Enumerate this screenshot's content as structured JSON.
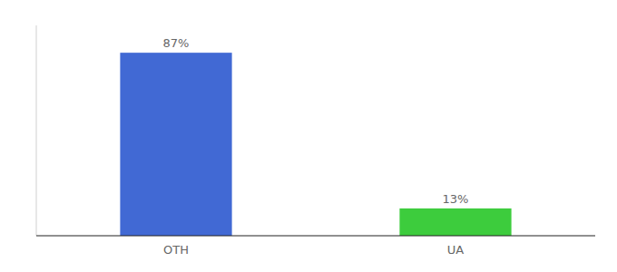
{
  "chart_data": {
    "type": "bar",
    "categories": [
      "OTH",
      "UA"
    ],
    "values": [
      87,
      13
    ],
    "value_labels": [
      "87%",
      "13%"
    ],
    "colors": [
      "#4169d4",
      "#3dcc3d"
    ],
    "ylim": [
      0,
      100
    ],
    "data_labels": true,
    "tick_labels": "x"
  }
}
